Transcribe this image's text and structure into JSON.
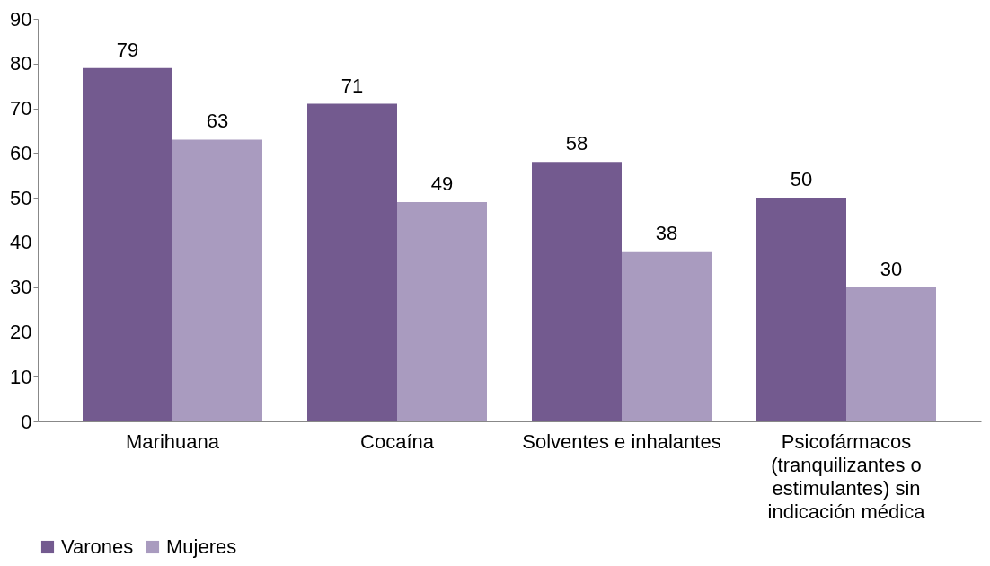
{
  "chart_data": {
    "type": "bar",
    "categories": [
      "Marihuana",
      "Cocaína",
      "Solventes e inhalantes",
      "Psicofármacos (tranquilizantes o estimulantes) sin indicación médica"
    ],
    "series": [
      {
        "name": "Varones",
        "color": "#735a8f",
        "values": [
          79,
          71,
          58,
          50
        ]
      },
      {
        "name": "Mujeres",
        "color": "#a99bbf",
        "values": [
          63,
          49,
          38,
          30
        ]
      }
    ],
    "ylim": [
      0,
      90
    ],
    "yticks": [
      0,
      10,
      20,
      30,
      40,
      50,
      60,
      70,
      80,
      90
    ],
    "data_labels": true,
    "grid": false,
    "legend": "bottom"
  }
}
